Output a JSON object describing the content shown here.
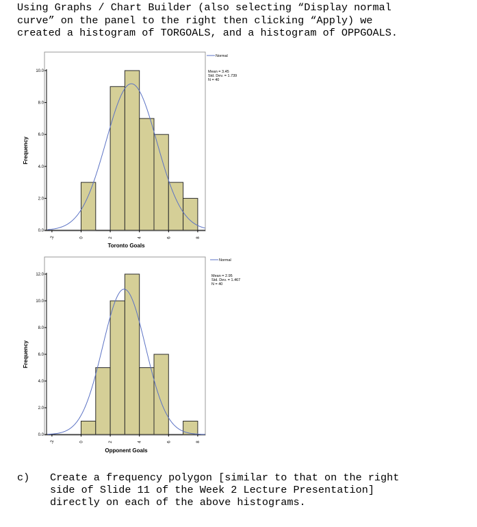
{
  "intro_text": "Using Graphs / Chart Builder (also selecting “Display normal\ncurve” on the panel to the right then clicking “Apply) we\ncreated a histogram of TORGOALS, and a histogram of OPPGOALS.",
  "part_c": {
    "letter": "c)",
    "text": "Create a frequency polygon [similar to that on the right\nside of Slide 11 of the Week 2 Lecture Presentation]\ndirectly on each of the above histograms."
  },
  "chart_data": [
    {
      "type": "bar",
      "xlabel": "Toronto Goals",
      "ylabel": "Frequency",
      "bins": [
        0,
        1,
        2,
        3,
        4,
        5,
        6,
        7
      ],
      "values": [
        3,
        0,
        9,
        10,
        7,
        6,
        3,
        2
      ],
      "bin_width": 1,
      "xlim": [
        -2,
        8
      ],
      "x_ticks": [
        "-2",
        "0",
        "2",
        "4",
        "6",
        "8"
      ],
      "ylim": [
        0,
        10
      ],
      "y_ticks": [
        "0.0",
        "2.0",
        "4.0",
        "6.0",
        "8.0",
        "10.0"
      ],
      "normal_curve": {
        "mean": 3.45,
        "sd": 1.739,
        "n": 40
      },
      "legend": {
        "series": "Normal",
        "mean_text": "Mean = 3.45",
        "sd_text": "Std. Dev. = 1.739",
        "n_text": "N = 40"
      },
      "bar_color": "#d5cf97",
      "curve_color": "#5b72c4",
      "grid": false
    },
    {
      "type": "bar",
      "xlabel": "Opponent Goals",
      "ylabel": "Frequency",
      "bins": [
        0,
        1,
        2,
        3,
        4,
        5,
        6,
        7
      ],
      "values": [
        1,
        5,
        10,
        12,
        5,
        6,
        0,
        1
      ],
      "bin_width": 1,
      "xlim": [
        -2,
        8
      ],
      "x_ticks": [
        "-2",
        "0",
        "2",
        "4",
        "6",
        "8"
      ],
      "ylim": [
        0,
        12
      ],
      "y_ticks": [
        "0.0",
        "2.0",
        "4.0",
        "6.0",
        "8.0",
        "10.0",
        "12.0"
      ],
      "normal_curve": {
        "mean": 2.95,
        "sd": 1.467,
        "n": 40
      },
      "legend": {
        "series": "Normal",
        "mean_text": "Mean = 2.95",
        "sd_text": "Std. Dev. = 1.467",
        "n_text": "N = 40"
      },
      "bar_color": "#d5cf97",
      "curve_color": "#5b72c4",
      "grid": false
    }
  ]
}
